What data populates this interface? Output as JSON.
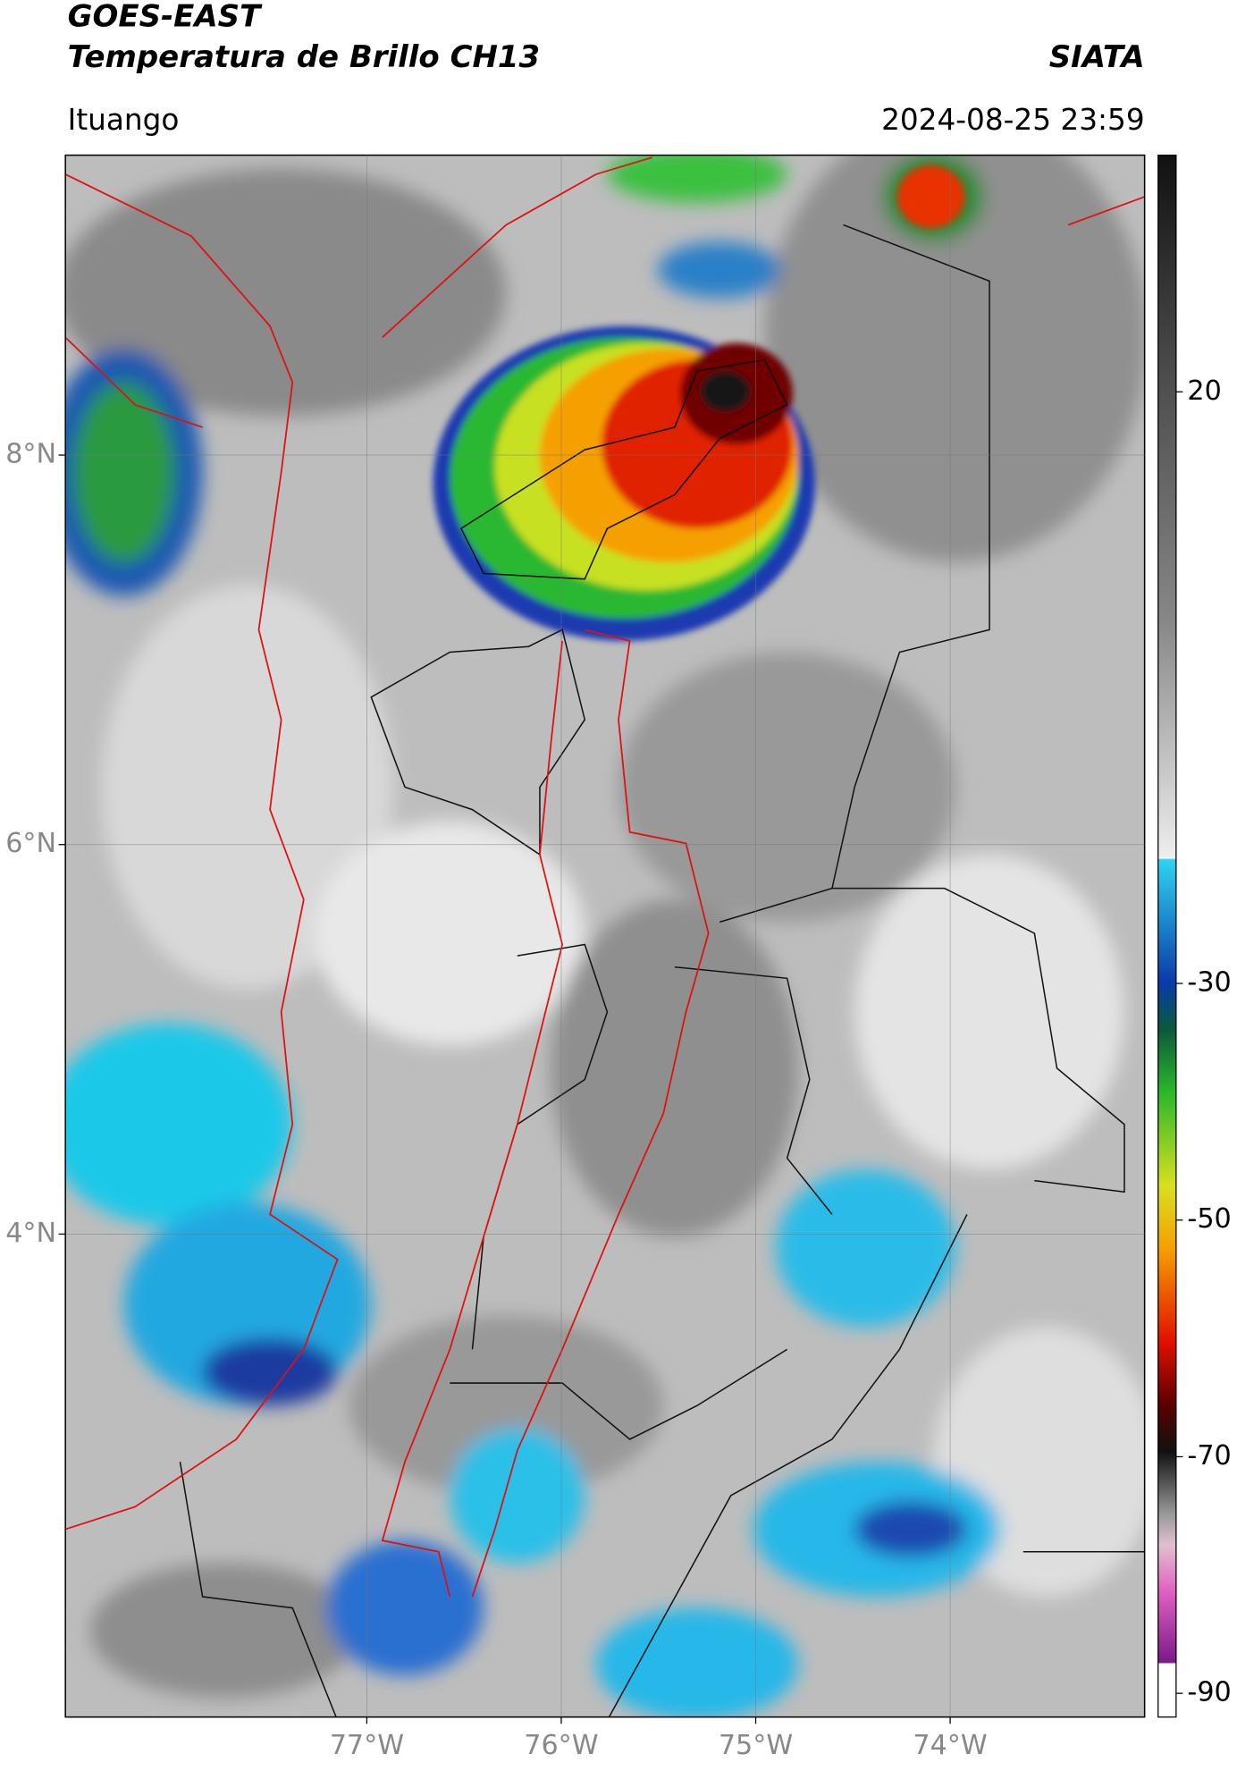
{
  "header": {
    "title": "GOES-EAST",
    "subtitle": "Temperatura de Brillo CH13",
    "source": "SIATA",
    "location": "Ituango",
    "datetime": "2024-08-25 23:59"
  },
  "map": {
    "xlim": [
      -78.55,
      -73.0
    ],
    "ylim": [
      1.52,
      9.54
    ],
    "xticks": [
      {
        "value": -77,
        "label": "77°W"
      },
      {
        "value": -76,
        "label": "76°W"
      },
      {
        "value": -75,
        "label": "75°W"
      },
      {
        "value": -74,
        "label": "74°W"
      }
    ],
    "yticks": [
      {
        "value": 8,
        "label": "8°N"
      },
      {
        "value": 6,
        "label": "6°N"
      },
      {
        "value": 4,
        "label": "4°N"
      }
    ]
  },
  "colorbar": {
    "lim": [
      40,
      -92
    ],
    "ticks": [
      20,
      -30,
      -50,
      -70,
      -90
    ]
  }
}
